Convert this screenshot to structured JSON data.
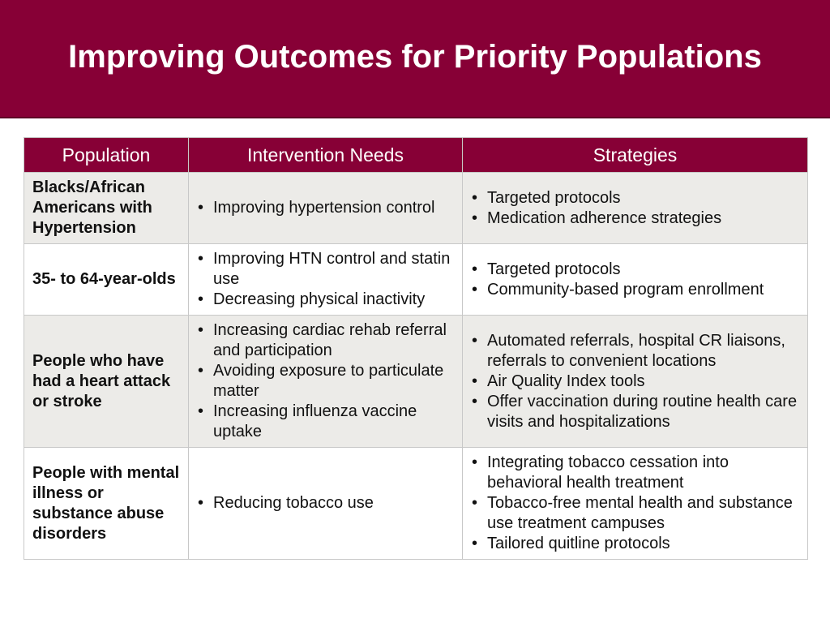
{
  "title": "Improving Outcomes for Priority Populations",
  "table": {
    "headers": [
      "Population",
      "Intervention Needs",
      "Strategies"
    ],
    "rows": [
      {
        "population": "Blacks/African Americans with Hypertension",
        "needs": [
          "Improving hypertension control"
        ],
        "strategies": [
          "Targeted protocols",
          "Medication adherence strategies"
        ]
      },
      {
        "population": "35- to 64-year-olds",
        "needs": [
          "Improving HTN control and statin use",
          "Decreasing physical inactivity"
        ],
        "strategies": [
          "Targeted protocols",
          "Community-based program enrollment"
        ]
      },
      {
        "population": "People who have had a heart attack or stroke",
        "needs": [
          "Increasing cardiac rehab referral and participation",
          "Avoiding exposure to particulate matter",
          "Increasing influenza vaccine uptake"
        ],
        "strategies": [
          "Automated referrals, hospital CR liaisons, referrals to convenient locations",
          "Air Quality Index tools",
          "Offer vaccination during routine health care visits and hospitalizations"
        ]
      },
      {
        "population": "People with mental illness or substance abuse disorders",
        "needs": [
          "Reducing tobacco use"
        ],
        "strategies": [
          "Integrating tobacco cessation into behavioral health treatment",
          "Tobacco-free mental health and substance use treatment campuses",
          "Tailored quitline protocols"
        ]
      }
    ]
  },
  "bullet_glyph": "•",
  "colors": {
    "title_bar": "#870036",
    "header_row": "#870036",
    "shaded_row": "#ecebe8",
    "border": "#c8c8c8"
  }
}
